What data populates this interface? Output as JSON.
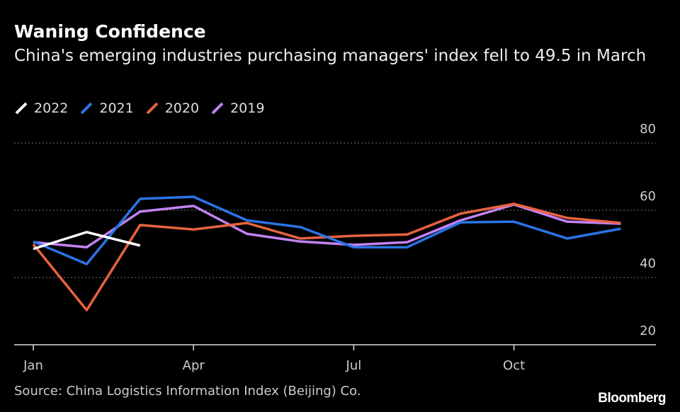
{
  "chart_data": {
    "type": "line",
    "title": "Waning Confidence",
    "subtitle": "China's emerging industries purchasing managers' index fell to 49.5 in March",
    "source": "Source: China Logistics Information Index (Beijing) Co.",
    "brand": "Bloomberg",
    "categories": [
      "Jan",
      null,
      null,
      "Apr",
      null,
      null,
      "Jul",
      null,
      null,
      "Oct",
      null,
      null
    ],
    "series": [
      {
        "name": "2022",
        "color": "#ffffff",
        "values": [
          48.5,
          53.5,
          49.5,
          null,
          null,
          null,
          null,
          null,
          null,
          null,
          null,
          null
        ]
      },
      {
        "name": "2021",
        "color": "#2a74e6",
        "values": [
          50.7,
          44,
          63.4,
          64,
          57,
          55,
          49,
          49,
          56.4,
          56.6,
          51.6,
          54.5
        ]
      },
      {
        "name": "2020",
        "color": "#e8633f",
        "values": [
          49.9,
          30.3,
          55.6,
          54.3,
          56.2,
          51.6,
          52.4,
          52.8,
          59,
          61.9,
          57.7,
          56.2
        ]
      },
      {
        "name": "2019",
        "color": "#c382f2",
        "values": [
          50.5,
          49,
          59.6,
          61.3,
          53,
          50.7,
          49.7,
          50.5,
          57,
          61.7,
          56.6,
          56
        ]
      }
    ],
    "ylim": [
      20,
      80
    ],
    "yticks": [
      20,
      40,
      60,
      80
    ],
    "grid": true,
    "legend": "top-left"
  }
}
